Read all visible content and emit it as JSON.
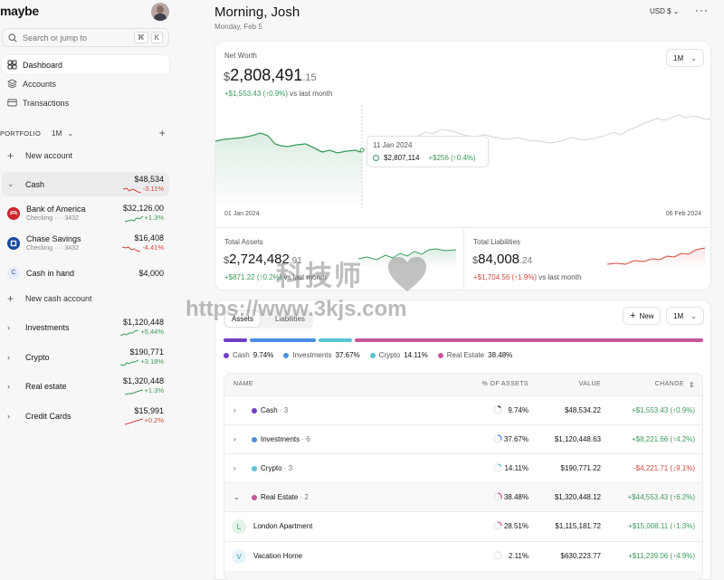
{
  "app": {
    "logo": "maybe"
  },
  "search": {
    "placeholder": "Search or jump to",
    "shortcut_1": "⌘",
    "shortcut_2": "K"
  },
  "nav": {
    "dashboard": "Dashboard",
    "accounts": "Accounts",
    "transactions": "Transactions"
  },
  "portfolio": {
    "label": "PORTFOLIO",
    "period": "1M",
    "new_account": "New account",
    "new_cash_account": "New cash account"
  },
  "sidebar_groups": {
    "cash": {
      "name": "Cash",
      "value": "$48,534",
      "change": "-3.11%"
    },
    "investments": {
      "name": "Investments",
      "value": "$1,120,448",
      "change": "+5.44%"
    },
    "crypto": {
      "name": "Crypto",
      "value": "$190,771",
      "change": "+3.18%"
    },
    "real_estate": {
      "name": "Real estate",
      "value": "$1,320,448",
      "change": "+1.3%"
    },
    "credit_cards": {
      "name": "Credit Cards",
      "value": "$15,991",
      "change": "+0.2%"
    }
  },
  "sidebar_accounts": [
    {
      "name": "Bank of America",
      "sub": "Checking ···· 3432",
      "value": "$32,126.00",
      "change": "+1.3%",
      "color": "#c8272d"
    },
    {
      "name": "Chase Savings",
      "sub": "Checking ···· 3432",
      "value": "$16,408",
      "change": "-4.41%",
      "color": "#1a4c9c"
    },
    {
      "name": "Cash in hand",
      "sub": "",
      "value": "$4,000",
      "change": "",
      "color": "#e6ecfb",
      "initial": "C"
    }
  ],
  "header": {
    "greeting": "Morning, Josh",
    "date": "Monday, Feb 5",
    "currency": "USD $",
    "more": "···"
  },
  "net_worth": {
    "label": "Net Worth",
    "symbol": "$",
    "value": "2,808,491",
    "decimals": ".15",
    "change": "+$1,553.43 (↑0.9%)",
    "change_suffix": "vs last month",
    "period": "1M",
    "start_date": "01 Jan 2024",
    "end_date": "06 Feb 2024",
    "tooltip": {
      "date": "11 Jan 2024",
      "value": "$2,807,114",
      "change": "+$256 (↑0.4%)"
    }
  },
  "total_assets": {
    "label": "Total Assets",
    "symbol": "$",
    "value": "2,724,482",
    "decimals": ".91",
    "change": "+$871.22 (↑0.2%)",
    "change_suffix": "vs last month"
  },
  "total_liabilities": {
    "label": "Total Liabilities",
    "symbol": "$",
    "value": "84,008",
    "decimals": ".24",
    "change": "+$1,704.56 (↑1.9%)",
    "change_suffix": "vs last month"
  },
  "assets_panel": {
    "tab_assets": "Assets",
    "tab_liabilities": "Liabilities",
    "new_label": "New",
    "period": "1M",
    "legend": [
      {
        "name": "Cash",
        "pct": "9.74%",
        "color": "#6f3ec7"
      },
      {
        "name": "Investments",
        "pct": "37.67%",
        "color": "#4a8ee0"
      },
      {
        "name": "Crypto",
        "pct": "14.11%",
        "color": "#5bc4d4"
      },
      {
        "name": "Real Estate",
        "pct": "38.48%",
        "color": "#c8559a"
      }
    ],
    "table_headers": {
      "name": "NAME",
      "pct": "% OF ASSETS",
      "value": "VALUE",
      "change": "CHANGE"
    },
    "rows": [
      {
        "name": "Cash",
        "count": "· 3",
        "pct": "9.74%",
        "value": "$48,534.22",
        "change": "+$1,553.43 (↑0.9%)"
      },
      {
        "name": "Investments",
        "count": "· 6",
        "pct": "37.67%",
        "value": "$1,120,448.63",
        "change": "+$8,221.66 (↑4.2%)"
      },
      {
        "name": "Crypto",
        "count": "· 3",
        "pct": "14.11%",
        "value": "$190,771.22",
        "change": "-$4,221.71 (↓9.1%)"
      },
      {
        "name": "Real Estate",
        "count": "· 2",
        "pct": "38.48%",
        "value": "$1,320,448.12",
        "change": "+$44,553.43 (↑6.2%)"
      }
    ],
    "sub_rows": [
      {
        "initial": "L",
        "name": "London Apartment",
        "pct": "28.51%",
        "value": "$1,115,181.72",
        "change": "+$15,008.11 (↑1.3%)"
      },
      {
        "initial": "V",
        "name": "Vacation Home",
        "pct": "2.11%",
        "value": "$630,223.77",
        "change": "+$11,239.06 (↑4.9%)"
      }
    ]
  },
  "watermark": {
    "line1": "科技师",
    "line2": "https://www.3kjs.com"
  }
}
